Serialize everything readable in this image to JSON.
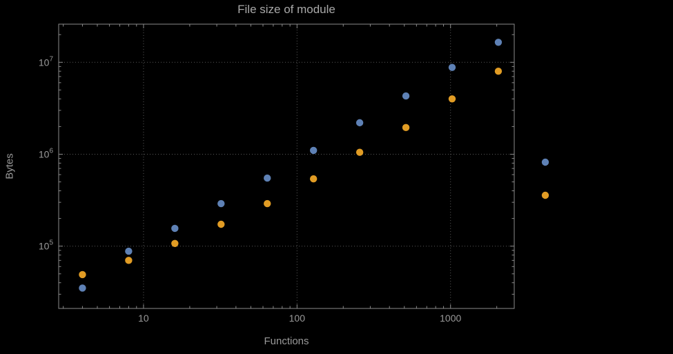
{
  "chart_data": {
    "type": "scatter",
    "title": "File size of module",
    "xlabel": "Functions",
    "ylabel": "Bytes",
    "x_scale": "log",
    "y_scale": "log",
    "xlim": [
      2.8,
      2600
    ],
    "ylim": [
      21000,
      26000000
    ],
    "grid": "dotted-major-decades",
    "x_ticks": [
      {
        "value": 10,
        "label": "10"
      },
      {
        "value": 100,
        "label": "100"
      },
      {
        "value": 1000,
        "label": "1000"
      }
    ],
    "y_ticks": [
      {
        "value": 100000,
        "base": "10",
        "exp": "5"
      },
      {
        "value": 1000000,
        "base": "10",
        "exp": "6"
      },
      {
        "value": 10000000,
        "base": "10",
        "exp": "7"
      }
    ],
    "series": [
      {
        "name": "series-blue",
        "color": "#5E81B5",
        "x": [
          4,
          8,
          16,
          32,
          64,
          128,
          256,
          512,
          1024,
          2048
        ],
        "y": [
          35000,
          88000,
          156000,
          290000,
          550000,
          1100000,
          2200000,
          4300000,
          8800000,
          16500000
        ]
      },
      {
        "name": "series-orange",
        "color": "#E19C24",
        "x": [
          4,
          8,
          16,
          32,
          64,
          128,
          256,
          512,
          1024,
          2048
        ],
        "y": [
          49000,
          70000,
          107000,
          173000,
          290000,
          540000,
          1050000,
          1950000,
          4000000,
          8000000
        ]
      }
    ],
    "legend": {
      "position": "right-outside",
      "markers": [
        {
          "color": "#5E81B5",
          "label": ""
        },
        {
          "color": "#E19C24",
          "label": ""
        }
      ]
    }
  },
  "colors": {
    "background": "#000000",
    "frame": "#8c8c8c",
    "grid": "#5a5a5a",
    "tick_label": "#9a9a9a",
    "title": "#a9a9a9"
  }
}
